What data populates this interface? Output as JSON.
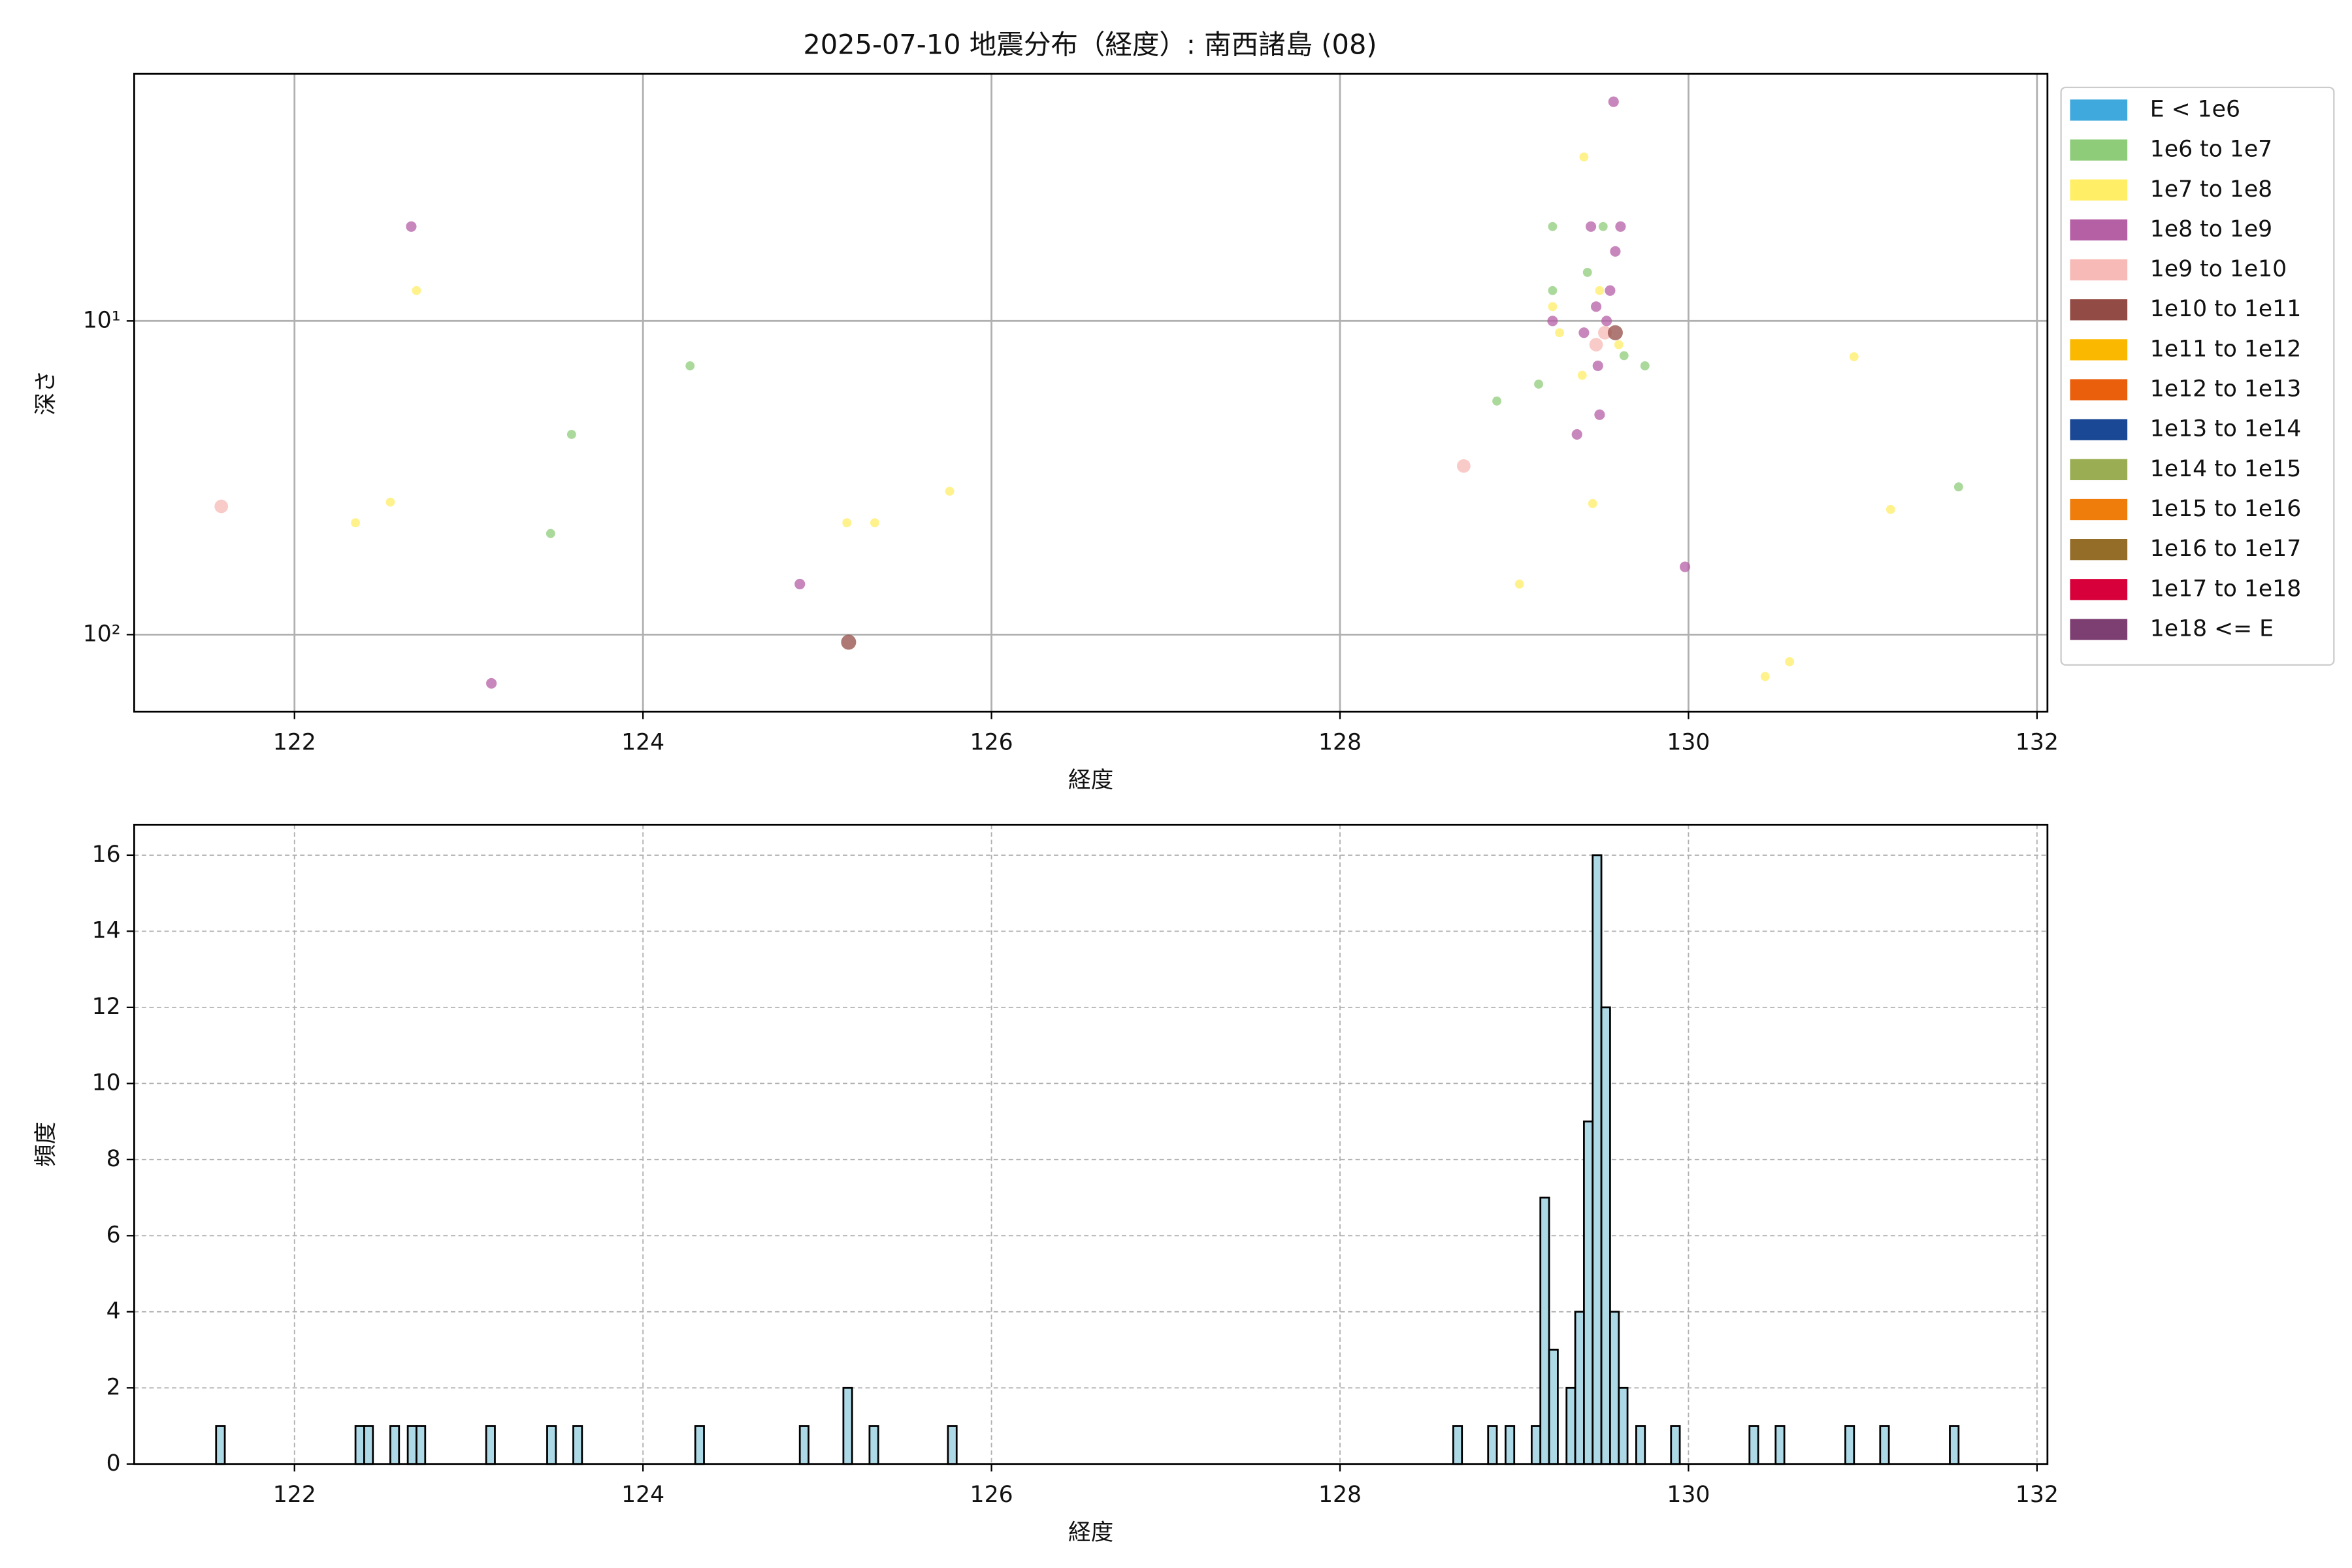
{
  "chart_data": [
    {
      "type": "scatter",
      "title": "2025-07-10 地震分布（経度）: 南西諸島 (08)",
      "x_label": "経度",
      "y_label": "深さ",
      "xlim": [
        121.08,
        132.06
      ],
      "ylim": [
        1.63,
        176
      ],
      "y_scale": "log",
      "y_inverted": true,
      "xticks": [
        122,
        124,
        126,
        128,
        130,
        132
      ],
      "yticks": [
        {
          "value": 10,
          "label": "10¹"
        },
        {
          "value": 100,
          "label": "10²"
        }
      ],
      "grid": true,
      "legend": "outside right",
      "series": [
        {
          "name": "E < 1e6",
          "color": "#3fa9dd",
          "x": [],
          "values": []
        },
        {
          "name": "1e6 to 1e7",
          "color": "#8fcc7a",
          "x": [
            124.27,
            123.59,
            123.47,
            128.9,
            129.14,
            129.22,
            129.22,
            129.42,
            129.51,
            129.63,
            129.75,
            131.55
          ],
          "values": [
            13.9,
            23,
            47.6,
            18,
            15.9,
            5.0,
            8.0,
            7.0,
            5.0,
            12.9,
            13.9,
            33.8
          ]
        },
        {
          "name": "1e7 to 1e8",
          "color": "#ffee66",
          "x": [
            122.7,
            122.35,
            122.55,
            125.17,
            125.33,
            125.76,
            129.4,
            129.22,
            129.26,
            129.39,
            129.45,
            129.03,
            130.95,
            131.16,
            130.44,
            130.58,
            129.6,
            129.49
          ],
          "values": [
            8.0,
            44,
            37.8,
            44,
            44,
            34.9,
            3.0,
            9.0,
            10.9,
            14.9,
            38.2,
            69,
            13.0,
            39.9,
            136,
            122,
            11.9,
            8.0
          ]
        },
        {
          "name": "1e8 to 1e9",
          "color": "#b55fa5",
          "x": [
            122.67,
            124.9,
            123.13,
            129.57,
            129.44,
            129.61,
            129.58,
            129.55,
            129.47,
            129.22,
            129.4,
            129.48,
            129.49,
            129.36,
            129.98,
            129.53
          ],
          "values": [
            5.0,
            69,
            143,
            2.0,
            5.0,
            5.0,
            6.0,
            8.0,
            9.0,
            10,
            10.9,
            13.9,
            19.9,
            23,
            60.8,
            10
          ]
        },
        {
          "name": "1e9 to 1e10",
          "color": "#f7bab6",
          "x": [
            121.58,
            128.71,
            129.47,
            129.52
          ],
          "values": [
            39,
            29,
            11.9,
            10.9
          ]
        },
        {
          "name": "1e10 to 1e11",
          "color": "#934c45",
          "x": [
            125.18,
            129.58
          ],
          "values": [
            105.7,
            10.9
          ]
        },
        {
          "name": "1e11 to 1e12",
          "color": "#fbb800",
          "x": [],
          "values": []
        },
        {
          "name": "1e12 to 1e13",
          "color": "#ea5f0c",
          "x": [],
          "values": []
        },
        {
          "name": "1e13 to 1e14",
          "color": "#1b4894",
          "x": [],
          "values": []
        },
        {
          "name": "1e14 to 1e15",
          "color": "#9aad52",
          "x": [],
          "values": []
        },
        {
          "name": "1e15 to 1e16",
          "color": "#ee7d0b",
          "x": [],
          "values": []
        },
        {
          "name": "1e16 to 1e17",
          "color": "#946d29",
          "x": [],
          "values": []
        },
        {
          "name": "1e17 to 1e18",
          "color": "#d7003a",
          "x": [],
          "values": []
        },
        {
          "name": "1e18 <= E",
          "color": "#7d3f72",
          "x": [],
          "values": []
        }
      ]
    },
    {
      "type": "histogram",
      "x_label": "経度",
      "y_label": "頻度",
      "xlim": [
        121.08,
        132.06
      ],
      "ylim": [
        0,
        16.8
      ],
      "xticks": [
        122,
        124,
        126,
        128,
        130,
        132
      ],
      "yticks": [
        0,
        2,
        4,
        6,
        8,
        10,
        12,
        14,
        16
      ],
      "grid": true,
      "grid_style": "dashed",
      "color": "#add8e6",
      "edgecolor": "#000000",
      "bins": [
        121.55,
        121.6,
        121.65,
        121.7,
        121.75,
        121.8,
        121.85,
        121.9,
        121.95,
        122,
        122.05,
        122.1,
        122.15,
        122.2,
        122.25,
        122.3,
        122.35,
        122.4,
        122.45,
        122.5,
        122.55,
        122.6,
        122.65,
        122.7,
        122.75,
        122.8,
        122.85,
        122.9,
        122.95,
        123,
        123.05,
        123.1,
        123.15,
        123.2,
        123.25,
        123.3,
        123.35,
        123.4,
        123.45,
        123.5,
        123.55,
        123.6,
        123.65,
        123.7,
        123.75,
        123.8,
        123.85,
        123.9,
        123.95,
        124,
        124.05,
        124.1,
        124.15,
        124.2,
        124.25,
        124.3,
        124.35,
        124.4,
        124.45,
        124.5,
        124.55,
        124.6,
        124.65,
        124.7,
        124.75,
        124.8,
        124.85,
        124.9,
        124.95,
        125,
        125.05,
        125.1,
        125.15,
        125.2,
        125.25,
        125.3,
        125.35,
        125.4,
        125.45,
        125.5,
        125.55,
        125.6,
        125.65,
        125.7,
        125.75,
        125.8,
        125.85,
        125.9,
        125.95,
        126,
        126.05,
        126.1,
        126.15,
        126.2,
        126.25,
        126.3,
        126.35,
        126.4,
        126.45,
        126.5,
        126.55,
        126.6,
        126.65,
        126.7,
        126.75,
        126.8,
        126.85,
        126.9,
        126.95,
        127,
        127.05,
        127.1,
        127.15,
        127.2,
        127.25,
        127.3,
        127.35,
        127.4,
        127.45,
        127.5,
        127.55,
        127.6,
        127.65,
        127.7,
        127.75,
        127.8,
        127.85,
        127.9,
        127.95,
        128,
        128.05,
        128.1,
        128.15,
        128.2,
        128.25,
        128.3,
        128.35,
        128.4,
        128.45,
        128.5,
        128.55,
        128.6,
        128.65,
        128.7,
        128.75,
        128.8,
        128.85,
        128.9,
        128.95,
        129,
        129.05,
        129.1,
        129.15,
        129.2,
        129.25,
        129.3,
        129.35,
        129.4,
        129.45,
        129.5,
        129.55,
        129.6,
        129.65,
        129.7,
        129.75,
        129.8,
        129.85,
        129.9,
        129.95,
        130,
        130.05,
        130.1,
        130.15,
        130.2,
        130.25,
        130.3,
        130.35,
        130.4,
        130.45,
        130.5,
        130.55,
        130.6,
        130.65,
        130.7,
        130.75,
        130.8,
        130.85,
        130.9,
        130.95,
        131,
        131.05,
        131.1,
        131.15,
        131.2,
        131.25,
        131.3,
        131.35,
        131.4,
        131.45,
        131.5,
        131.55
      ],
      "values": [
        1,
        0,
        0,
        0,
        0,
        0,
        0,
        0,
        0,
        0,
        0,
        0,
        0,
        0,
        0,
        0,
        1,
        1,
        0,
        0,
        1,
        0,
        1,
        1,
        0,
        0,
        0,
        0,
        0,
        0,
        0,
        1,
        0,
        0,
        0,
        0,
        0,
        0,
        1,
        0,
        0,
        1,
        0,
        0,
        0,
        0,
        0,
        0,
        0,
        0,
        0,
        0,
        0,
        0,
        0,
        1,
        0,
        0,
        0,
        0,
        0,
        0,
        0,
        0,
        0,
        0,
        0,
        1,
        0,
        0,
        0,
        0,
        2,
        0,
        0,
        1,
        0,
        0,
        0,
        0,
        0,
        0,
        0,
        0,
        1,
        0,
        0,
        0,
        0,
        0,
        0,
        0,
        0,
        0,
        0,
        0,
        0,
        0,
        0,
        0,
        0,
        0,
        0,
        0,
        0,
        0,
        0,
        0,
        0,
        0,
        0,
        0,
        0,
        0,
        0,
        0,
        0,
        0,
        0,
        0,
        0,
        0,
        0,
        0,
        0,
        0,
        0,
        0,
        0,
        0,
        0,
        0,
        0,
        0,
        0,
        0,
        0,
        0,
        0,
        0,
        0,
        0,
        1,
        0,
        0,
        0,
        1,
        0,
        1,
        0,
        0,
        1,
        7,
        3,
        0,
        2,
        4,
        9,
        16,
        12,
        4,
        2,
        0,
        1,
        0,
        0,
        0,
        1,
        0,
        0,
        0,
        0,
        0,
        0,
        0,
        0,
        1,
        0,
        0,
        1,
        0,
        0,
        0,
        0,
        0,
        0,
        0,
        1,
        0,
        0,
        0,
        1,
        0,
        0,
        0,
        0,
        0,
        0,
        0,
        1
      ]
    }
  ]
}
